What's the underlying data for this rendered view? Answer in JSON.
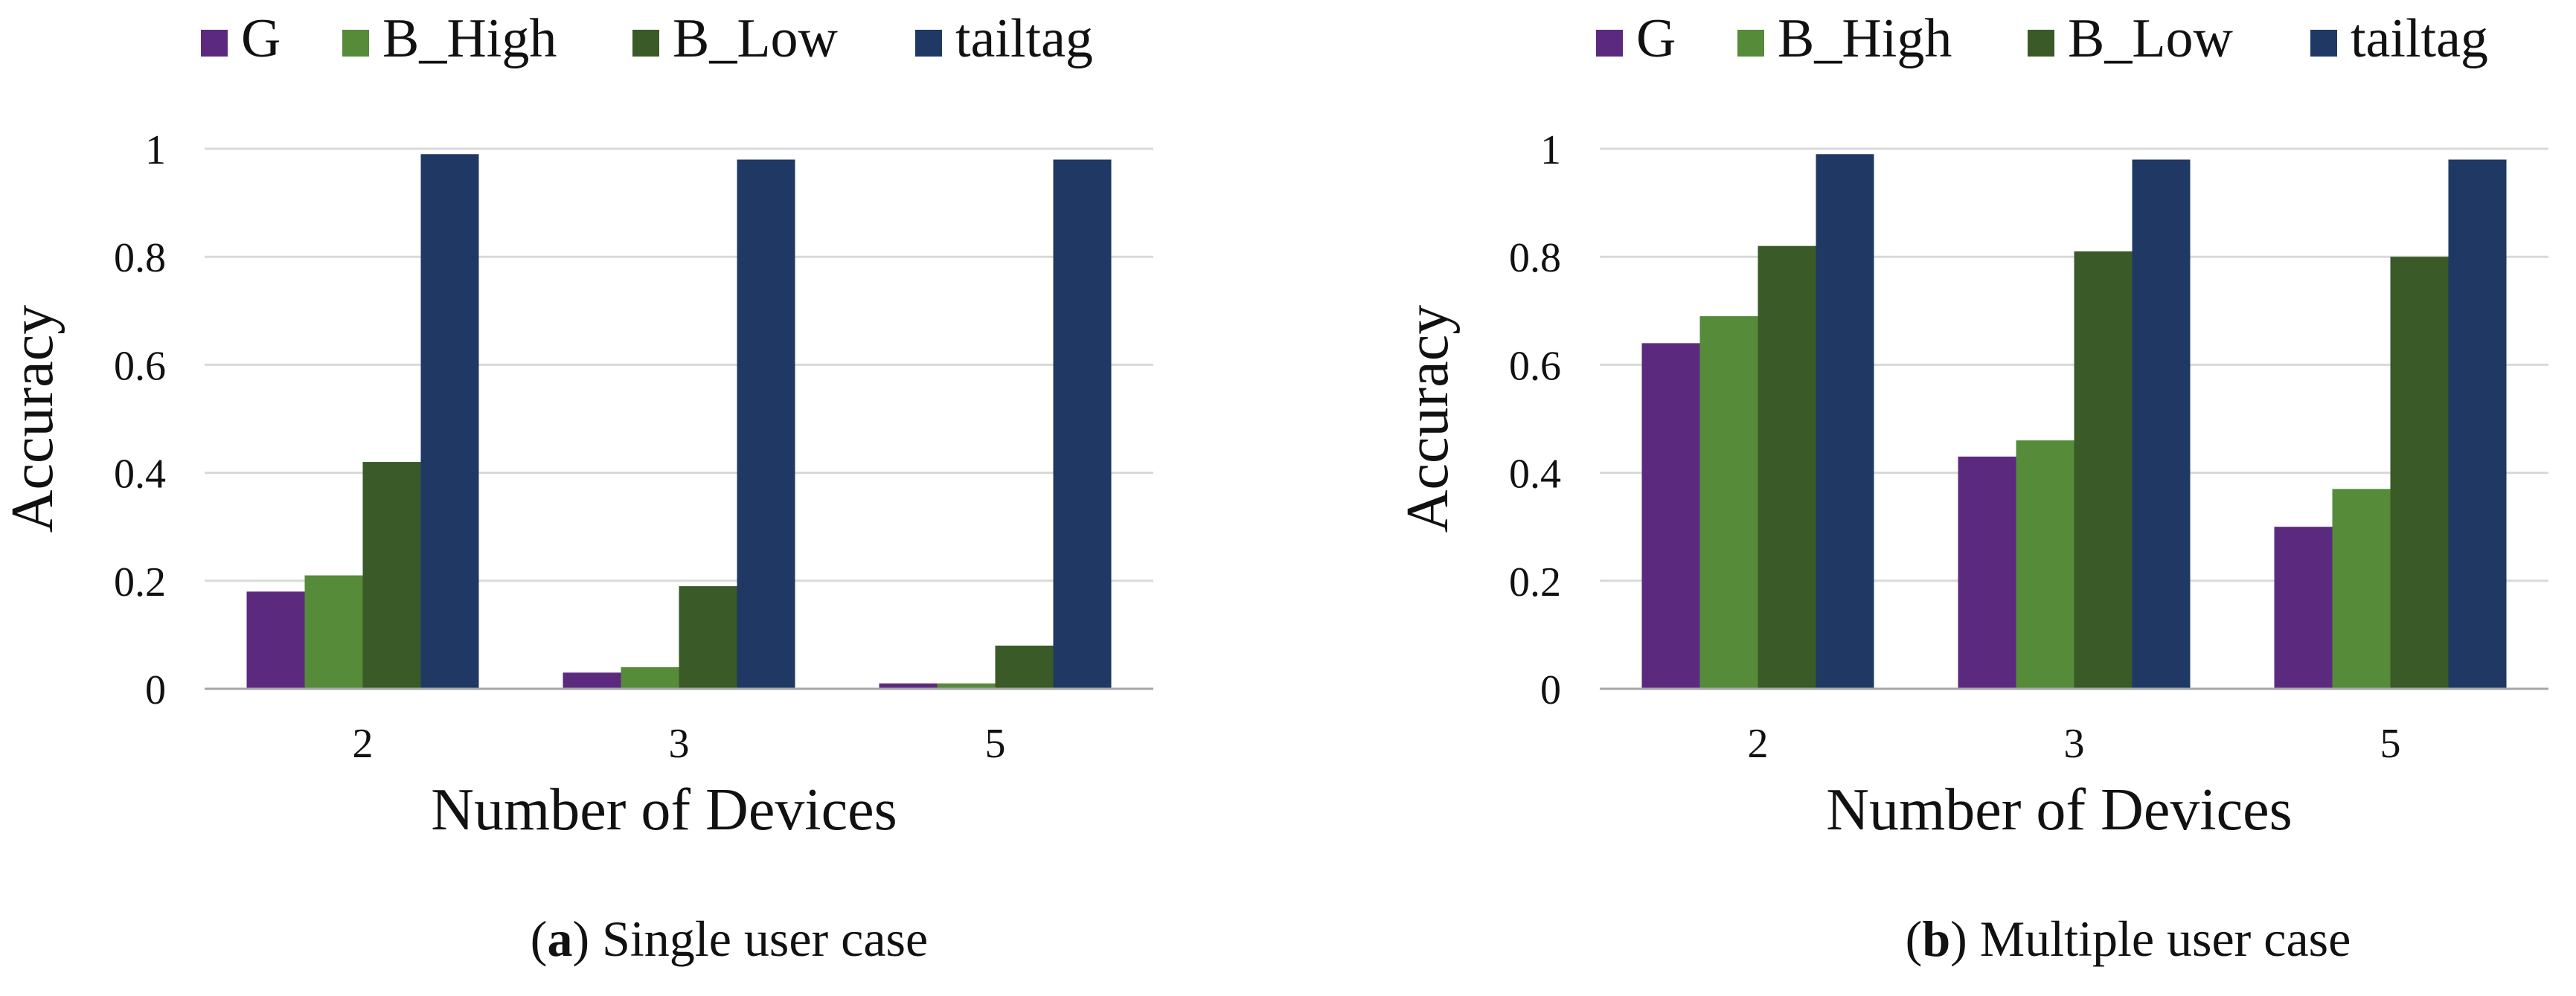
{
  "colors": {
    "G": "#5b2a7e",
    "B_High": "#568b3a",
    "B_Low": "#3a5a27",
    "tailtag": "#1f3864",
    "grid": "#d9d9d9",
    "axis": "#a6a6a6"
  },
  "chart_data": [
    {
      "type": "bar",
      "title": "",
      "caption_prefix": "(",
      "caption_letter": "a",
      "caption_text": ") Single user case",
      "xlabel": "Number of Devices",
      "ylabel": "Accuracy",
      "categories": [
        "2",
        "3",
        "5"
      ],
      "ylim": [
        0,
        1
      ],
      "yticks": [
        0,
        0.2,
        0.4,
        0.6,
        0.8,
        1
      ],
      "ytick_labels": [
        "0",
        "0.2",
        "0.4",
        "0.6",
        "0.8",
        "1"
      ],
      "grid": true,
      "legend_position": "top",
      "series": [
        {
          "name": "G",
          "color_key": "G",
          "values": [
            0.18,
            0.03,
            0.01
          ]
        },
        {
          "name": "B_High",
          "color_key": "B_High",
          "values": [
            0.21,
            0.04,
            0.01
          ]
        },
        {
          "name": "B_Low",
          "color_key": "B_Low",
          "values": [
            0.42,
            0.19,
            0.08
          ]
        },
        {
          "name": "tailtag",
          "color_key": "tailtag",
          "values": [
            0.99,
            0.98,
            0.98
          ]
        }
      ]
    },
    {
      "type": "bar",
      "title": "",
      "caption_prefix": "(",
      "caption_letter": "b",
      "caption_text": ") Multiple user case",
      "xlabel": "Number of Devices",
      "ylabel": "Accuracy",
      "categories": [
        "2",
        "3",
        "5"
      ],
      "ylim": [
        0,
        1
      ],
      "yticks": [
        0,
        0.2,
        0.4,
        0.6,
        0.8,
        1
      ],
      "ytick_labels": [
        "0",
        "0.2",
        "0.4",
        "0.6",
        "0.8",
        "1"
      ],
      "grid": true,
      "legend_position": "top",
      "series": [
        {
          "name": "G",
          "color_key": "G",
          "values": [
            0.64,
            0.43,
            0.3
          ]
        },
        {
          "name": "B_High",
          "color_key": "B_High",
          "values": [
            0.69,
            0.46,
            0.37
          ]
        },
        {
          "name": "B_Low",
          "color_key": "B_Low",
          "values": [
            0.82,
            0.81,
            0.8
          ]
        },
        {
          "name": "tailtag",
          "color_key": "tailtag",
          "values": [
            0.99,
            0.98,
            0.98
          ]
        }
      ]
    }
  ]
}
